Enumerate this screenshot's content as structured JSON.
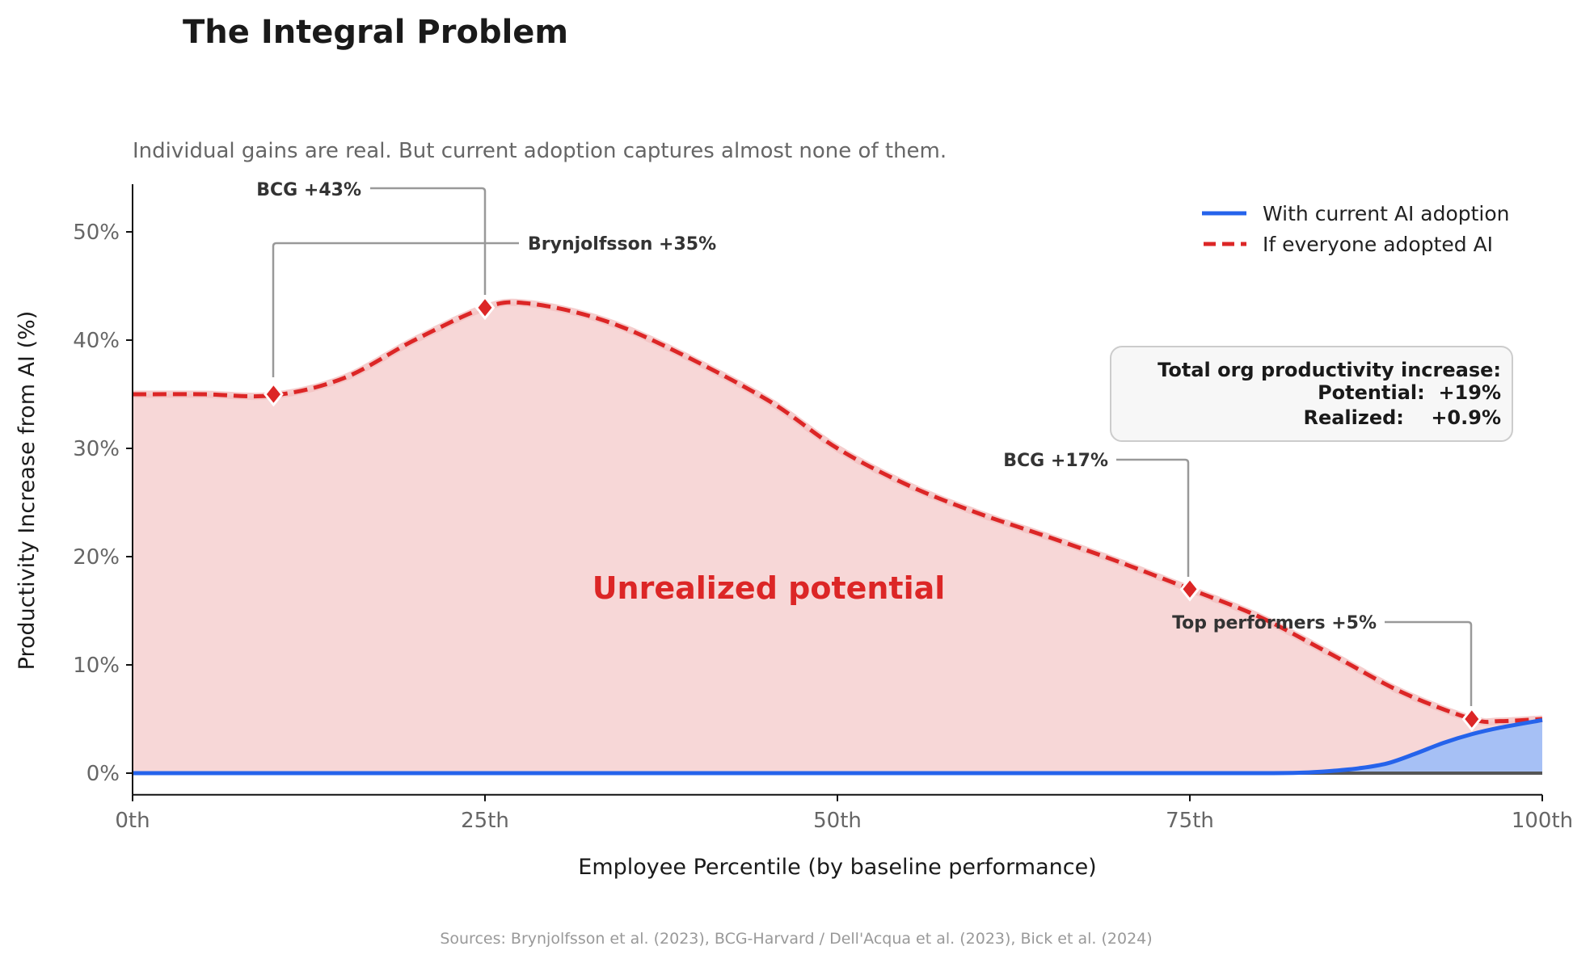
{
  "chart_data": {
    "type": "area",
    "title": "The Integral Problem",
    "subtitle": "Individual gains are real. But current adoption captures almost none of them.",
    "xlabel": "Employee Percentile (by baseline performance)",
    "ylabel": "Productivity Increase from AI (%)",
    "xlim": [
      0,
      100
    ],
    "ylim": [
      -2,
      54.4
    ],
    "x_ticks": [
      {
        "v": 0,
        "label": "0th"
      },
      {
        "v": 25,
        "label": "25th"
      },
      {
        "v": 50,
        "label": "50th"
      },
      {
        "v": 75,
        "label": "75th"
      },
      {
        "v": 100,
        "label": "100th"
      }
    ],
    "y_ticks": [
      {
        "v": 0,
        "label": "0%"
      },
      {
        "v": 10,
        "label": "10%"
      },
      {
        "v": 20,
        "label": "20%"
      },
      {
        "v": 30,
        "label": "30%"
      },
      {
        "v": 40,
        "label": "40%"
      },
      {
        "v": 50,
        "label": "50%"
      }
    ],
    "grid": false,
    "legend_position": "top-right",
    "series": [
      {
        "name": "With current AI adoption",
        "color": "#2563eb",
        "fill": "#a6c0f5",
        "style": "solid",
        "x": [
          0,
          10,
          20,
          30,
          40,
          50,
          60,
          70,
          80,
          83,
          85,
          87,
          89,
          91,
          93,
          95,
          97,
          100
        ],
        "y": [
          0,
          0,
          0,
          0,
          0,
          0,
          0,
          0,
          0,
          0.05,
          0.2,
          0.45,
          0.9,
          1.8,
          2.8,
          3.6,
          4.2,
          4.9
        ]
      },
      {
        "name": "If everyone adopted AI",
        "color": "#dc2626",
        "fill": "#f7d7d7",
        "style": "dashed",
        "x": [
          0,
          5,
          10,
          15,
          20,
          25,
          28,
          33,
          38,
          45,
          50,
          55,
          60,
          65,
          70,
          75,
          80,
          85,
          90,
          95,
          97,
          100
        ],
        "y": [
          35,
          35,
          34.9,
          36.5,
          40,
          43,
          43.4,
          42,
          39.3,
          34.5,
          30,
          26.6,
          24,
          21.8,
          19.5,
          17,
          14.4,
          11,
          7.5,
          5,
          4.8,
          5
        ]
      }
    ],
    "markers": [
      {
        "x": 10,
        "y": 35,
        "label": "Brynjolfsson +35%"
      },
      {
        "x": 25,
        "y": 43,
        "label": "BCG +43%"
      },
      {
        "x": 75,
        "y": 17,
        "label": "BCG +17%"
      },
      {
        "x": 95,
        "y": 5,
        "label": "Top performers +5%"
      }
    ],
    "region_label": "Unrealized potential",
    "summary_box": {
      "heading": "Total org productivity increase:",
      "potential": "Potential:  +19%",
      "realized": "Realized:    +0.9%"
    },
    "source": "Sources: Brynjolfsson et al. (2023), BCG-Harvard / Dell'Acqua et al. (2023), Bick et al. (2024)"
  }
}
